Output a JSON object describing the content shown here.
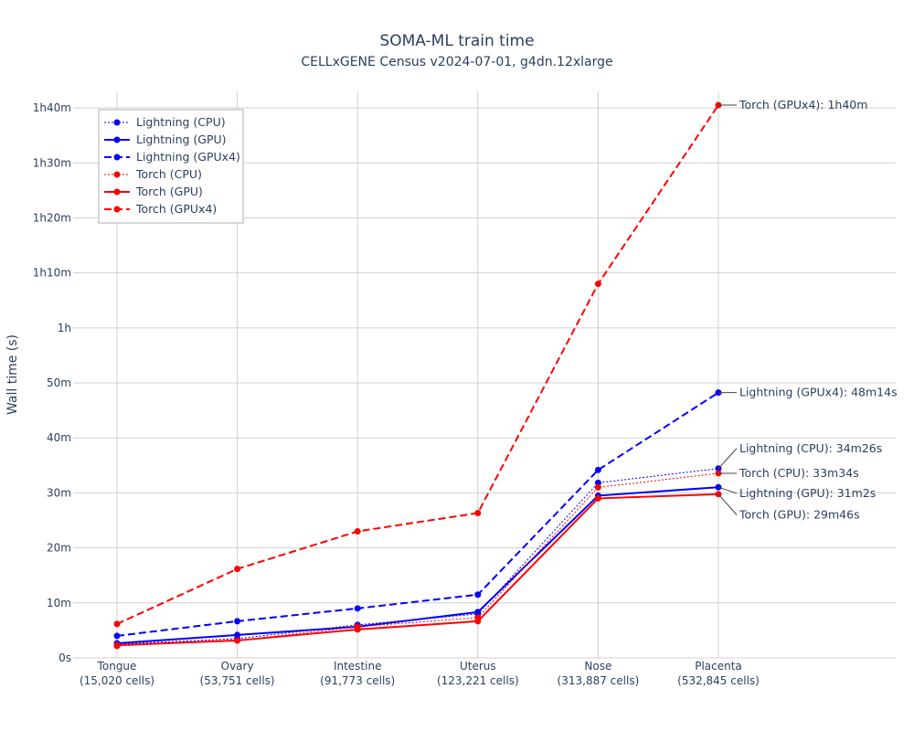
{
  "chart_data": {
    "type": "line",
    "title": "SOMA-ML train time",
    "subtitle": "CELLxGENE Census v2024-07-01, g4dn.12xlarge",
    "ylabel": "Wall time (s)",
    "xlabel": "",
    "ylim": [
      0,
      6180
    ],
    "grid": true,
    "legend_position": "top-left",
    "y_ticks": [
      {
        "value": 0,
        "label": "0s"
      },
      {
        "value": 600,
        "label": "10m"
      },
      {
        "value": 1200,
        "label": "20m"
      },
      {
        "value": 1800,
        "label": "30m"
      },
      {
        "value": 2400,
        "label": "40m"
      },
      {
        "value": 3000,
        "label": "50m"
      },
      {
        "value": 3600,
        "label": "1h"
      },
      {
        "value": 4200,
        "label": "1h10m"
      },
      {
        "value": 4800,
        "label": "1h20m"
      },
      {
        "value": 5400,
        "label": "1h30m"
      },
      {
        "value": 6000,
        "label": "1h40m"
      }
    ],
    "categories": [
      {
        "name": "Tongue",
        "cells": "(15,020 cells)"
      },
      {
        "name": "Ovary",
        "cells": "(53,751 cells)"
      },
      {
        "name": "Intestine",
        "cells": "(91,773 cells)"
      },
      {
        "name": "Uterus",
        "cells": "(123,221 cells)"
      },
      {
        "name": "Nose",
        "cells": "(313,887 cells)"
      },
      {
        "name": "Placenta",
        "cells": "(532,845 cells)"
      }
    ],
    "series": [
      {
        "name": "Lightning (CPU)",
        "color": "#0000ff",
        "dash": "dot",
        "width": 1,
        "values": [
          150,
          210,
          360,
          480,
          1910,
          2066
        ]
      },
      {
        "name": "Lightning (GPU)",
        "color": "#0000ff",
        "dash": "solid",
        "width": 2,
        "values": [
          160,
          250,
          340,
          500,
          1770,
          1862
        ]
      },
      {
        "name": "Lightning (GPUx4)",
        "color": "#0000ff",
        "dash": "dash",
        "width": 2,
        "values": [
          240,
          400,
          540,
          690,
          2050,
          2894
        ]
      },
      {
        "name": "Torch (CPU)",
        "color": "#ff0000",
        "dash": "dot",
        "width": 1,
        "values": [
          130,
          190,
          340,
          440,
          1860,
          2014
        ]
      },
      {
        "name": "Torch (GPU)",
        "color": "#ff0000",
        "dash": "solid",
        "width": 2,
        "values": [
          140,
          190,
          310,
          400,
          1740,
          1786
        ]
      },
      {
        "name": "Torch (GPUx4)",
        "color": "#ff0000",
        "dash": "dash",
        "width": 2,
        "values": [
          370,
          970,
          1380,
          1580,
          4080,
          6030
        ]
      }
    ],
    "annotations": [
      {
        "text": "Torch (GPUx4): 1h40m",
        "series": "Torch (GPUx4)",
        "label_value": 6030
      },
      {
        "text": "Lightning (GPUx4): 48m14s",
        "series": "Lightning (GPUx4)",
        "label_value": 2894
      },
      {
        "text": "Lightning (CPU): 34m26s",
        "series": "Lightning (CPU)",
        "label_value": 2285
      },
      {
        "text": "Torch (CPU): 33m34s",
        "series": "Torch (CPU)",
        "label_value": 2014
      },
      {
        "text": "Lightning (GPU): 31m2s",
        "series": "Lightning (GPU)",
        "label_value": 1795
      },
      {
        "text": "Torch (GPU): 29m46s",
        "series": "Torch (GPU)",
        "label_value": 1560
      }
    ]
  }
}
